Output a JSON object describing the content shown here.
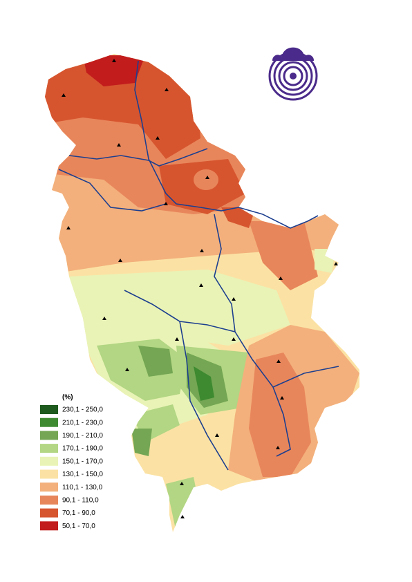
{
  "legend": {
    "title": "(%)",
    "items": [
      {
        "label": "230,1 - 250,0",
        "color": "#1e5a1e"
      },
      {
        "label": "210,1 - 230,0",
        "color": "#3d8a30"
      },
      {
        "label": "190,1 - 210,0",
        "color": "#74a653"
      },
      {
        "label": "170,1 - 190,0",
        "color": "#b2d683"
      },
      {
        "label": "150,1 - 170,0",
        "color": "#e9f3b6"
      },
      {
        "label": "130,1 - 150,0",
        "color": "#fbe2a4"
      },
      {
        "label": "110,1 - 130,0",
        "color": "#f3b07c"
      },
      {
        "label": "90,1 - 110,0",
        "color": "#e8865b"
      },
      {
        "label": "70,1 - 90,0",
        "color": "#d6552f"
      },
      {
        "label": "50,1 - 70,0",
        "color": "#c21c1c"
      }
    ]
  }
}
